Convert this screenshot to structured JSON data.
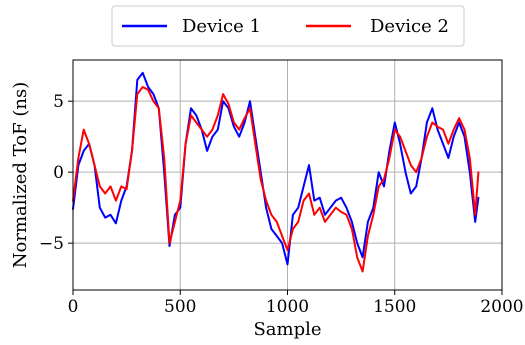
{
  "chart_data": {
    "type": "line",
    "title": "",
    "xlabel": "Sample",
    "ylabel": "Normalized ToF (ns)",
    "xlim": [
      0,
      2000
    ],
    "ylim": [
      -8.3,
      7.9
    ],
    "x_ticks": [
      0,
      500,
      1000,
      1500,
      2000
    ],
    "x_tick_labels": [
      "0",
      "500",
      "1000",
      "1500",
      "2000"
    ],
    "y_ticks": [
      5,
      0,
      -5
    ],
    "y_tick_labels": [
      "5",
      "0",
      "−5"
    ],
    "grid": true,
    "legend": {
      "placement": "top-center-outside",
      "ncol": 2
    },
    "series": [
      {
        "name": "Device 1",
        "color": "#0000ff",
        "x": [
          0,
          25,
          50,
          75,
          100,
          125,
          150,
          175,
          200,
          225,
          250,
          275,
          300,
          325,
          350,
          375,
          400,
          425,
          450,
          475,
          500,
          525,
          550,
          575,
          600,
          625,
          650,
          675,
          700,
          725,
          750,
          775,
          800,
          825,
          850,
          875,
          900,
          925,
          950,
          975,
          1000,
          1025,
          1050,
          1075,
          1100,
          1125,
          1150,
          1175,
          1200,
          1225,
          1250,
          1275,
          1300,
          1325,
          1350,
          1375,
          1400,
          1425,
          1450,
          1475,
          1500,
          1525,
          1550,
          1575,
          1600,
          1625,
          1650,
          1675,
          1700,
          1725,
          1750,
          1775,
          1800,
          1825,
          1850,
          1875,
          1890
        ],
        "y": [
          -2.6,
          0.5,
          1.5,
          2.0,
          0.5,
          -2.5,
          -3.2,
          -3.0,
          -3.6,
          -2.0,
          -1.0,
          1.5,
          6.5,
          7.0,
          6.0,
          5.5,
          4.5,
          0.0,
          -5.2,
          -3.0,
          -2.5,
          2.0,
          4.5,
          4.0,
          3.0,
          1.5,
          2.5,
          3.0,
          5.0,
          4.5,
          3.2,
          2.5,
          3.5,
          5.0,
          2.5,
          0.0,
          -2.5,
          -4.0,
          -4.5,
          -5.0,
          -6.5,
          -3.0,
          -2.5,
          -1.0,
          0.5,
          -2.0,
          -1.8,
          -3.0,
          -2.5,
          -2.0,
          -1.8,
          -2.5,
          -3.5,
          -5.0,
          -6.0,
          -3.5,
          -2.5,
          0.0,
          -1.0,
          1.5,
          3.5,
          2.0,
          0.0,
          -1.5,
          -1.0,
          1.0,
          3.5,
          4.5,
          3.0,
          2.0,
          1.0,
          2.5,
          3.5,
          2.5,
          0.0,
          -3.5,
          -1.8
        ]
      },
      {
        "name": "Device 2",
        "color": "#ff0000",
        "x": [
          0,
          25,
          50,
          75,
          100,
          125,
          150,
          175,
          200,
          225,
          250,
          275,
          300,
          325,
          350,
          375,
          400,
          425,
          450,
          475,
          500,
          525,
          550,
          575,
          600,
          625,
          650,
          675,
          700,
          725,
          750,
          775,
          800,
          825,
          850,
          875,
          900,
          925,
          950,
          975,
          1000,
          1025,
          1050,
          1075,
          1100,
          1125,
          1150,
          1175,
          1200,
          1225,
          1250,
          1275,
          1300,
          1325,
          1350,
          1375,
          1400,
          1425,
          1450,
          1475,
          1500,
          1525,
          1550,
          1575,
          1600,
          1625,
          1650,
          1675,
          1700,
          1725,
          1750,
          1775,
          1800,
          1825,
          1850,
          1875,
          1890
        ],
        "y": [
          -2.0,
          1.0,
          3.0,
          2.0,
          0.5,
          -1.0,
          -1.5,
          -1.0,
          -2.0,
          -1.0,
          -1.2,
          1.5,
          5.5,
          6.0,
          5.8,
          5.0,
          4.5,
          1.0,
          -5.0,
          -3.5,
          -2.0,
          2.0,
          4.0,
          3.5,
          3.0,
          2.5,
          3.0,
          4.0,
          5.5,
          4.8,
          3.5,
          3.0,
          3.8,
          4.5,
          2.0,
          -0.5,
          -2.0,
          -3.0,
          -3.5,
          -4.5,
          -5.5,
          -4.0,
          -3.5,
          -2.0,
          -1.5,
          -3.0,
          -2.5,
          -3.5,
          -3.0,
          -2.5,
          -2.8,
          -3.0,
          -4.0,
          -6.0,
          -7.0,
          -4.5,
          -3.0,
          -1.0,
          -0.5,
          1.0,
          3.0,
          2.5,
          1.5,
          0.5,
          0.0,
          1.0,
          2.5,
          3.5,
          3.2,
          3.0,
          2.0,
          3.0,
          3.8,
          3.0,
          1.0,
          -3.0,
          0.0
        ]
      }
    ]
  }
}
